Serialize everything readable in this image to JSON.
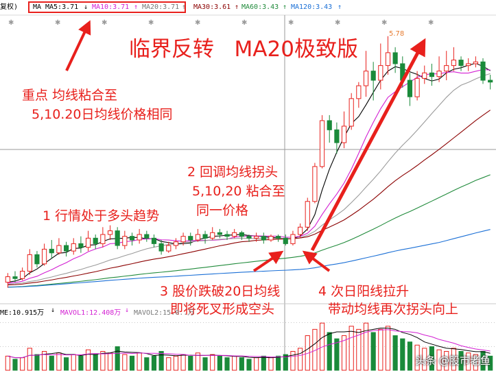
{
  "header": {
    "left_label": "复权)",
    "ma_label": "MA",
    "ma5": "MA5:3.71",
    "ma5_arrow": "↓",
    "ma10": "MA10:3.71",
    "ma10_arrow": "↑",
    "ma20": "MA20:3.71",
    "ma20_arrow": "↑",
    "ma30": "MA30:3.61",
    "ma30_arrow": "↑",
    "ma60": "MA60:3.43",
    "ma60_arrow": "↑",
    "ma120": "MA120:3.43",
    "ma120_arrow": "↑"
  },
  "title": "临界反转   MA20极致版",
  "annotations": {
    "note_key_1": "重点 均线粘合至",
    "note_key_2": "5,10.20日均线价格相同",
    "note_1": "1 行情处于多头趋势",
    "note_2_1": "2 回调均线拐头",
    "note_2_2": "5,10,20 粘合至",
    "note_2_3": "同一价格",
    "note_3_1": "3 股价跌破20日均线",
    "note_3_2": "即将死叉形成空头",
    "note_4_1": "4 次日阳线拉升",
    "note_4_2": "带动均线再次拐头向上",
    "peak_label": "5.78"
  },
  "volume_header": {
    "vol_label": "ME:10.915万",
    "vol_arrow": "↓",
    "mavol1": "MAVOL1:12.408万",
    "mavol1_arrow": "↓",
    "mavol2": "MAVOL2:15.0..万"
  },
  "watermark": "头条 @股市老鱼",
  "colors": {
    "up": "#e8201c",
    "down": "#1a8a3a",
    "ma5": "#000000",
    "ma10": "#d21ed2",
    "ma20": "#9a9a9a",
    "ma30": "#8b0000",
    "ma60": "#1f8a3a",
    "ma120": "#1a6fd6",
    "accent": "#e8201c"
  },
  "chart_data": {
    "type": "candlestick",
    "price_range": [
      3.0,
      5.95
    ],
    "candles": [
      [
        3.1,
        3.16,
        3.04,
        3.2
      ],
      [
        3.16,
        3.14,
        3.1,
        3.22
      ],
      [
        3.14,
        3.22,
        3.12,
        3.26
      ],
      [
        3.22,
        3.4,
        3.18,
        3.46
      ],
      [
        3.4,
        3.3,
        3.26,
        3.44
      ],
      [
        3.3,
        3.46,
        3.28,
        3.52
      ],
      [
        3.46,
        3.42,
        3.36,
        3.56
      ],
      [
        3.42,
        3.5,
        3.4,
        3.58
      ],
      [
        3.5,
        3.44,
        3.38,
        3.54
      ],
      [
        3.44,
        3.52,
        3.4,
        3.58
      ],
      [
        3.52,
        3.48,
        3.42,
        3.6
      ],
      [
        3.48,
        3.58,
        3.44,
        3.66
      ],
      [
        3.58,
        3.52,
        3.46,
        3.62
      ],
      [
        3.52,
        3.62,
        3.48,
        3.7
      ],
      [
        3.62,
        3.66,
        3.56,
        3.72
      ],
      [
        3.66,
        3.5,
        3.46,
        3.7
      ],
      [
        3.5,
        3.6,
        3.46,
        3.66
      ],
      [
        3.6,
        3.56,
        3.5,
        3.64
      ],
      [
        3.56,
        3.62,
        3.52,
        3.68
      ],
      [
        3.62,
        3.58,
        3.54,
        3.66
      ],
      [
        3.58,
        3.52,
        3.48,
        3.62
      ],
      [
        3.52,
        3.44,
        3.4,
        3.56
      ],
      [
        3.44,
        3.5,
        3.42,
        3.54
      ],
      [
        3.5,
        3.54,
        3.46,
        3.58
      ],
      [
        3.54,
        3.6,
        3.5,
        3.64
      ],
      [
        3.6,
        3.56,
        3.5,
        3.64
      ],
      [
        3.56,
        3.62,
        3.54,
        3.68
      ],
      [
        3.62,
        3.58,
        3.52,
        3.66
      ],
      [
        3.58,
        3.64,
        3.56,
        3.7
      ],
      [
        3.64,
        3.62,
        3.58,
        3.68
      ],
      [
        3.62,
        3.6,
        3.56,
        3.66
      ],
      [
        3.6,
        3.64,
        3.58,
        3.68
      ],
      [
        3.64,
        3.6,
        3.56,
        3.66
      ],
      [
        3.6,
        3.58,
        3.54,
        3.62
      ],
      [
        3.58,
        3.6,
        3.54,
        3.64
      ],
      [
        3.6,
        3.56,
        3.52,
        3.64
      ],
      [
        3.56,
        3.6,
        3.54,
        3.62
      ],
      [
        3.6,
        3.58,
        3.54,
        3.62
      ],
      [
        3.58,
        3.52,
        3.5,
        3.62
      ],
      [
        3.52,
        3.62,
        3.5,
        3.66
      ],
      [
        3.62,
        3.7,
        3.58,
        3.74
      ],
      [
        3.7,
        3.98,
        3.66,
        4.02
      ],
      [
        3.98,
        4.36,
        3.96,
        4.4
      ],
      [
        4.36,
        4.86,
        4.34,
        4.92
      ],
      [
        4.86,
        4.76,
        4.62,
        4.92
      ],
      [
        4.76,
        4.62,
        4.5,
        4.84
      ],
      [
        4.62,
        4.8,
        4.56,
        4.96
      ],
      [
        4.8,
        5.1,
        4.76,
        5.16
      ],
      [
        5.1,
        5.24,
        5.0,
        5.28
      ],
      [
        5.24,
        5.4,
        5.12,
        5.62
      ],
      [
        5.4,
        5.3,
        5.08,
        5.5
      ],
      [
        5.3,
        5.46,
        5.2,
        5.7
      ],
      [
        5.46,
        5.6,
        5.36,
        5.78
      ],
      [
        5.6,
        5.48,
        5.38,
        5.66
      ],
      [
        5.48,
        5.3,
        5.22,
        5.56
      ],
      [
        5.3,
        5.12,
        5.02,
        5.38
      ],
      [
        5.12,
        5.32,
        5.08,
        5.4
      ],
      [
        5.32,
        5.38,
        5.26,
        5.46
      ],
      [
        5.38,
        5.34,
        5.24,
        5.48
      ],
      [
        5.34,
        5.4,
        5.28,
        5.56
      ],
      [
        5.4,
        5.46,
        5.3,
        5.62
      ],
      [
        5.46,
        5.52,
        5.4,
        5.66
      ],
      [
        5.52,
        5.46,
        5.4,
        5.56
      ],
      [
        5.46,
        5.48,
        5.4,
        5.54
      ],
      [
        5.48,
        5.5,
        5.44,
        5.56
      ],
      [
        5.5,
        5.3,
        5.26,
        5.54
      ],
      [
        5.3,
        5.28,
        5.2,
        5.36
      ]
    ],
    "volume": [
      9,
      7,
      8,
      14,
      10,
      12,
      9,
      11,
      8,
      10,
      9,
      13,
      10,
      12,
      11,
      15,
      10,
      9,
      11,
      8,
      9,
      12,
      8,
      9,
      10,
      9,
      11,
      8,
      10,
      9,
      8,
      9,
      8,
      7,
      8,
      9,
      8,
      9,
      10,
      12,
      14,
      22,
      26,
      30,
      24,
      20,
      22,
      28,
      26,
      30,
      24,
      26,
      28,
      22,
      20,
      18,
      16,
      14,
      15,
      13,
      12,
      14,
      12,
      11,
      10,
      12,
      9
    ],
    "volume_range": [
      0,
      34
    ]
  }
}
